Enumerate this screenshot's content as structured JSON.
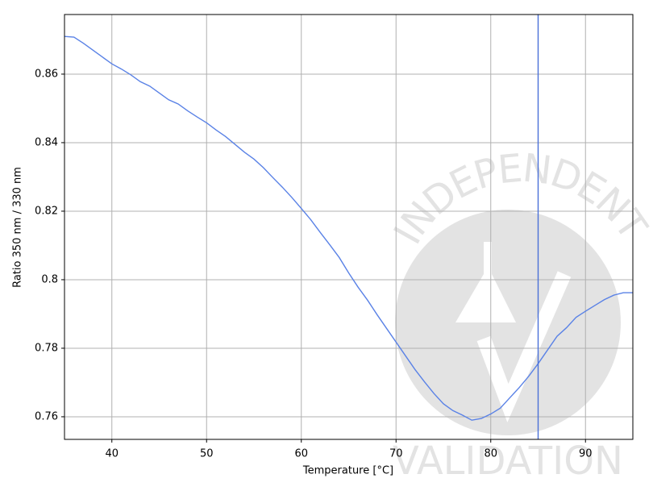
{
  "chart_data": {
    "type": "line",
    "x_label": "Temperature [°C]",
    "y_label": "Ratio 350 nm / 330 nm",
    "x": [
      35,
      36,
      37,
      38,
      39,
      40,
      41,
      42,
      43,
      44,
      45,
      46,
      47,
      48,
      49,
      50,
      51,
      52,
      53,
      54,
      55,
      56,
      57,
      58,
      59,
      60,
      61,
      62,
      63,
      64,
      65,
      66,
      67,
      68,
      69,
      70,
      71,
      72,
      73,
      74,
      75,
      76,
      77,
      78,
      79,
      80,
      81,
      82,
      83,
      84,
      85,
      86,
      87,
      88,
      89,
      90,
      91,
      92,
      93,
      94,
      95
    ],
    "series": [
      {
        "color": "#5a82e6",
        "values": [
          0.871,
          0.8708,
          0.869,
          0.867,
          0.865,
          0.863,
          0.8615,
          0.8598,
          0.8578,
          0.8565,
          0.8545,
          0.8525,
          0.8513,
          0.8493,
          0.8475,
          0.8458,
          0.8437,
          0.8418,
          0.8395,
          0.8372,
          0.8352,
          0.8327,
          0.8298,
          0.827,
          0.824,
          0.8208,
          0.8175,
          0.8138,
          0.8102,
          0.8065,
          0.802,
          0.7978,
          0.794,
          0.7898,
          0.7858,
          0.7818,
          0.7778,
          0.7738,
          0.7702,
          0.7668,
          0.7638,
          0.7618,
          0.7605,
          0.759,
          0.7595,
          0.7608,
          0.7625,
          0.7655,
          0.7685,
          0.7718,
          0.7755,
          0.7795,
          0.7835,
          0.786,
          0.789,
          0.7908,
          0.7925,
          0.7942,
          0.7955,
          0.7962,
          0.7962
        ]
      }
    ],
    "vline": 85,
    "vline_color": "#4a70d8",
    "xlim": [
      35,
      95
    ],
    "xticks": [
      40,
      50,
      60,
      70,
      80,
      90
    ],
    "ylim": [
      0.7534,
      0.8774
    ],
    "yticks": [
      0.76,
      0.78,
      0.8,
      0.82,
      0.84,
      0.86
    ],
    "grid": true,
    "watermark_top": "INDEPENDENT",
    "watermark_bottom": "VALIDATION"
  }
}
